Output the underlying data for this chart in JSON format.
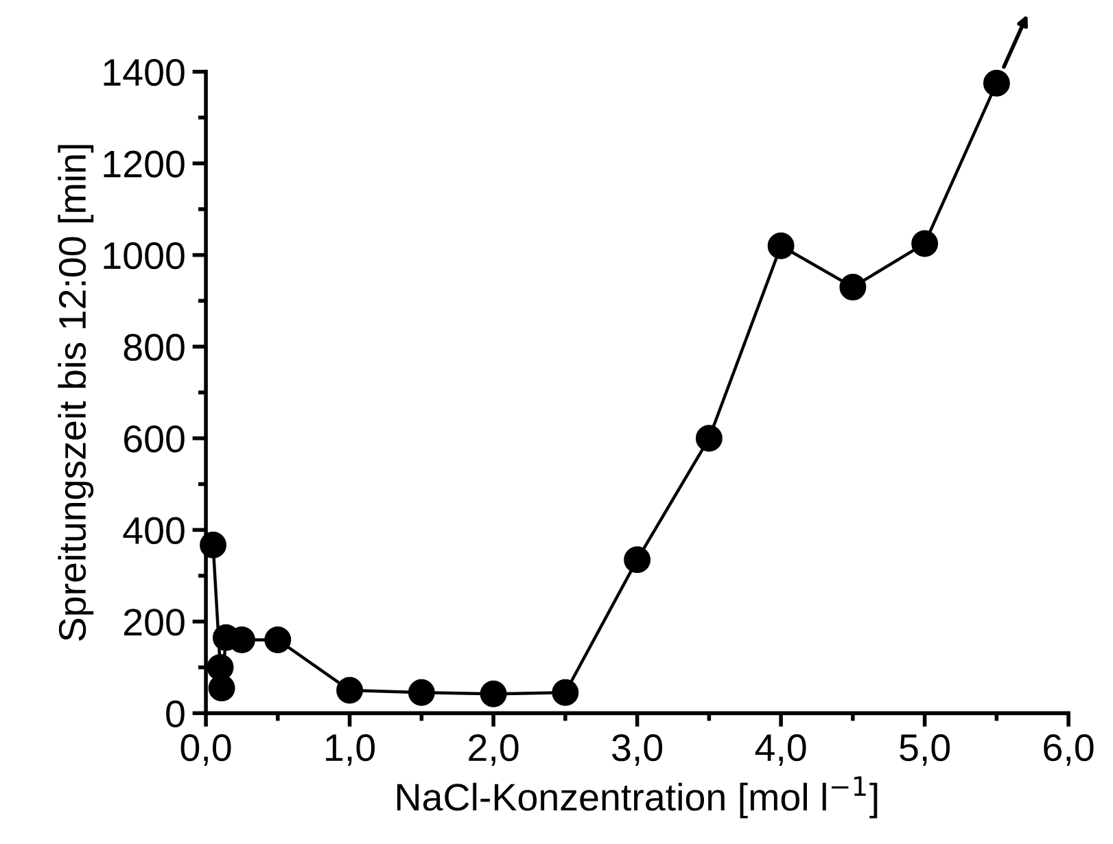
{
  "chart_data": {
    "type": "line",
    "xlabel": "NaCl-Konzentration [mol l$^{−1}$]",
    "ylabel": "Spreitungszeit bis 12:00 [min]",
    "x": [
      0.05,
      0.1,
      0.11,
      0.14,
      0.25,
      0.5,
      1.0,
      1.5,
      2.0,
      2.5,
      3.0,
      3.5,
      4.0,
      4.5,
      5.0,
      5.5
    ],
    "series": [
      {
        "color": "#000000",
        "values": [
          367,
          100,
          55,
          165,
          160,
          160,
          50,
          45,
          42,
          45,
          335,
          600,
          1020,
          930,
          1025,
          1375
        ]
      }
    ],
    "xlim": [
      0,
      6
    ],
    "xticks": [
      {
        "value": 0,
        "label": "0,0"
      },
      {
        "value": 1,
        "label": "1,0"
      },
      {
        "value": 2,
        "label": "2,0"
      },
      {
        "value": 3,
        "label": "3,0"
      },
      {
        "value": 4,
        "label": "4,0"
      },
      {
        "value": 5,
        "label": "5,0"
      },
      {
        "value": 6,
        "label": "6,0"
      }
    ],
    "ylim": [
      0,
      1400
    ],
    "yticks": [
      0,
      200,
      400,
      600,
      800,
      1000,
      1200,
      1400
    ],
    "marker": "circle",
    "line_style": "solid",
    "grid": false,
    "legend": false
  }
}
